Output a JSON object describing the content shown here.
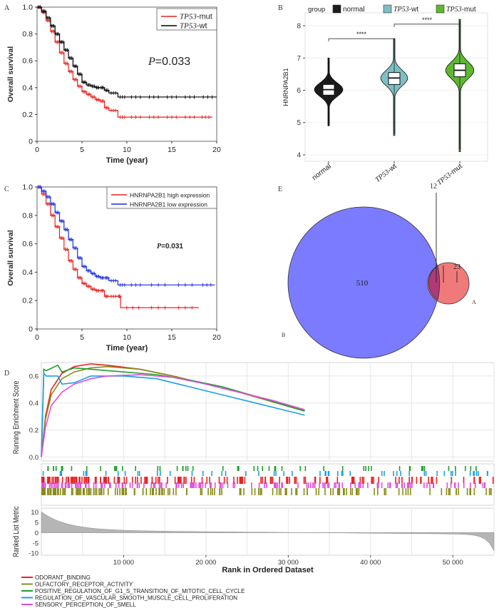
{
  "figure": {
    "panels": [
      {
        "letter": "A"
      },
      {
        "letter": "B"
      },
      {
        "letter": "C"
      },
      {
        "letter": "D"
      },
      {
        "letter": "E"
      }
    ]
  },
  "chart_data": [
    {
      "panel": "A",
      "type": "line",
      "xlabel": "Time (year)",
      "ylabel": "Overall survival",
      "xlim": [
        0,
        20
      ],
      "ylim": [
        0,
        1.0
      ],
      "xticks": [
        "0",
        "5",
        "10",
        "15",
        "20"
      ],
      "yticks": [
        "0",
        "0.2",
        "0.4",
        "0.6",
        "0.8",
        "1.0"
      ],
      "annotation_p": "P",
      "annotation_val": "=0.033",
      "legend_position": "top-right",
      "series": [
        {
          "name": "TP53-mut",
          "name_italic": "TP53",
          "name_rest": "-mut",
          "color": "#e8231f",
          "x": [
            0,
            0.5,
            1,
            1.5,
            2,
            2.5,
            3,
            3.5,
            4,
            4.5,
            5,
            5.5,
            6,
            6.5,
            7,
            7.5,
            8,
            9,
            10,
            12,
            14,
            16,
            18,
            19.5
          ],
          "y": [
            1.0,
            0.96,
            0.9,
            0.82,
            0.74,
            0.66,
            0.58,
            0.52,
            0.46,
            0.41,
            0.37,
            0.35,
            0.33,
            0.31,
            0.3,
            0.25,
            0.23,
            0.18,
            0.18,
            0.18,
            0.18,
            0.18,
            0.18,
            0.18
          ]
        },
        {
          "name": "TP53-wt",
          "name_italic": "TP53",
          "name_rest": "-wt",
          "color": "#000000",
          "x": [
            0,
            0.5,
            1,
            1.5,
            2,
            2.5,
            3,
            3.5,
            4,
            4.5,
            5,
            5.5,
            6,
            6.5,
            7,
            7.5,
            8,
            9,
            10,
            12,
            14,
            16,
            18,
            20
          ],
          "y": [
            1.0,
            0.97,
            0.92,
            0.86,
            0.8,
            0.74,
            0.68,
            0.62,
            0.56,
            0.5,
            0.44,
            0.42,
            0.41,
            0.4,
            0.4,
            0.38,
            0.36,
            0.33,
            0.33,
            0.33,
            0.33,
            0.33,
            0.33,
            0.33
          ]
        }
      ]
    },
    {
      "panel": "B",
      "type": "violin",
      "ylabel": "HNRNPA2B1",
      "ylim": [
        3.8,
        8.4
      ],
      "yticks": [
        "4",
        "5",
        "6",
        "7",
        "8"
      ],
      "legend_title": "group",
      "categories": [
        "normal",
        "TP53-wt",
        "TP53-mut"
      ],
      "series": [
        {
          "name": "normal",
          "label_italic": "",
          "label_rest": "normal",
          "color": "#1b1b1b",
          "min": 4.9,
          "q1": 5.85,
          "median": 6.02,
          "q3": 6.18,
          "max": 7.0,
          "mode_width": 1.0
        },
        {
          "name": "TP53-wt",
          "label_italic": "TP53",
          "label_rest": "-wt",
          "color": "#7dbfc4",
          "min": 4.6,
          "q1": 6.18,
          "median": 6.38,
          "q3": 6.55,
          "max": 7.6,
          "mode_width": 0.95
        },
        {
          "name": "TP53-mut",
          "label_italic": "TP53",
          "label_rest": "-mut",
          "color": "#5db82f",
          "min": 4.1,
          "q1": 6.42,
          "median": 6.62,
          "q3": 6.82,
          "max": 8.2,
          "mode_width": 1.0
        }
      ],
      "comparisons": [
        {
          "from": 0,
          "to": 1,
          "label": "****",
          "y": 7.6
        },
        {
          "from": 1,
          "to": 2,
          "label": "****",
          "y": 8.05
        }
      ]
    },
    {
      "panel": "C",
      "type": "line",
      "xlabel": "Time (year)",
      "ylabel": "Overall survival",
      "xlim": [
        0,
        20
      ],
      "ylim": [
        0,
        1.0
      ],
      "xticks": [
        "0",
        "5",
        "10",
        "15",
        "20"
      ],
      "yticks": [
        "0",
        "0.2",
        "0.4",
        "0.6",
        "0.8",
        "1.0"
      ],
      "annotation_p": "P",
      "annotation_val": "=0.031",
      "legend_position": "top-right",
      "series": [
        {
          "name": "HNRNPA2B1 high expression",
          "color": "#e8231f",
          "x": [
            0,
            0.5,
            1,
            1.5,
            2,
            2.5,
            3,
            3.5,
            4,
            4.5,
            5,
            5.5,
            6,
            6.5,
            7,
            7.5,
            8,
            9,
            9.3,
            12,
            15,
            18
          ],
          "y": [
            1.0,
            0.95,
            0.88,
            0.8,
            0.72,
            0.64,
            0.56,
            0.48,
            0.42,
            0.36,
            0.32,
            0.3,
            0.28,
            0.27,
            0.27,
            0.23,
            0.23,
            0.23,
            0.15,
            0.15,
            0.15,
            0.15
          ]
        },
        {
          "name": "HNRNPA2B1 low expression",
          "color": "#1a2fe0",
          "x": [
            0,
            0.5,
            1,
            1.5,
            2,
            2.5,
            3,
            3.5,
            4,
            4.5,
            5,
            5.5,
            6,
            6.5,
            7,
            7.5,
            8,
            9,
            10,
            12,
            15,
            18,
            19.8
          ],
          "y": [
            1.0,
            0.97,
            0.93,
            0.88,
            0.82,
            0.76,
            0.7,
            0.63,
            0.57,
            0.5,
            0.44,
            0.41,
            0.39,
            0.37,
            0.36,
            0.36,
            0.34,
            0.31,
            0.31,
            0.31,
            0.31,
            0.31,
            0.31
          ]
        }
      ]
    },
    {
      "panel": "D",
      "type": "line",
      "ylabel_top": "Running Enrichment Score",
      "ylabel_bottom": "Ranked List Metric",
      "xlabel": "Rank in Ordered Dataset",
      "xlim": [
        0,
        55000
      ],
      "ylim_top": [
        -0.03,
        0.7
      ],
      "yticks_top": [
        "0.0",
        "0.2",
        "0.4",
        "0.6"
      ],
      "ylim_bottom": [
        -11,
        12
      ],
      "yticks_bottom": [
        "10",
        "5",
        "0",
        "-5",
        "-10"
      ],
      "xticks": [
        "10 000",
        "20 000",
        "30 000",
        "40 000",
        "50 000"
      ],
      "series": [
        {
          "name": "ODORANT_BINDING",
          "color": "#e8231f",
          "x": [
            0,
            500,
            1200,
            2500,
            4000,
            6000,
            8000,
            12000,
            16000,
            20000,
            24000,
            28000,
            32000
          ],
          "y": [
            0.0,
            0.3,
            0.5,
            0.62,
            0.67,
            0.69,
            0.68,
            0.65,
            0.6,
            0.54,
            0.48,
            0.42,
            0.35
          ]
        },
        {
          "name": "OLFACTORY_RECEPTOR_ACTIVITY",
          "color": "#8a8a1a",
          "x": [
            0,
            500,
            1200,
            2500,
            4000,
            6000,
            8000,
            12000,
            16000,
            20000,
            24000,
            28000,
            32000
          ],
          "y": [
            0.0,
            0.28,
            0.46,
            0.58,
            0.63,
            0.66,
            0.67,
            0.65,
            0.6,
            0.54,
            0.48,
            0.41,
            0.34
          ]
        },
        {
          "name": "POSITIVE_REGULATION_OF_G1_S_TRANSITION_OF_MITOTIC_CELL_CYCLE",
          "color": "#1f9e2e",
          "x": [
            0,
            300,
            600,
            2000,
            2500,
            4000,
            6000,
            10000,
            14000,
            18000,
            22000,
            26000,
            32000
          ],
          "y": [
            0.0,
            0.65,
            0.64,
            0.68,
            0.63,
            0.66,
            0.65,
            0.63,
            0.61,
            0.57,
            0.52,
            0.45,
            0.34
          ]
        },
        {
          "name": "REGULATION_OF_VASCULAR_SMOOTH_MUSCLE_CELL_PROLIFERATION",
          "color": "#1aa0e8",
          "x": [
            0,
            300,
            600,
            2000,
            2500,
            4000,
            6000,
            10000,
            14000,
            18000,
            22000,
            26000,
            32000
          ],
          "y": [
            0.0,
            0.62,
            0.6,
            0.6,
            0.54,
            0.55,
            0.6,
            0.6,
            0.58,
            0.52,
            0.46,
            0.4,
            0.31
          ]
        },
        {
          "name": "SENSORY_PERCEPTION_OF_SMELL",
          "color": "#e04ee0",
          "x": [
            0,
            500,
            1200,
            2500,
            4000,
            6000,
            8000,
            12000,
            16000,
            20000,
            24000,
            28000,
            32000
          ],
          "y": [
            0.0,
            0.22,
            0.38,
            0.48,
            0.54,
            0.58,
            0.6,
            0.61,
            0.59,
            0.54,
            0.48,
            0.42,
            0.35
          ]
        }
      ]
    },
    {
      "panel": "E",
      "type": "venn",
      "sets": [
        {
          "name": "B",
          "only": "510",
          "color": "#7b7bff"
        },
        {
          "name": "A",
          "only": "23",
          "color": "#f07a7a"
        }
      ],
      "intersection": "12",
      "overlap_color": "#b03a78"
    }
  ]
}
